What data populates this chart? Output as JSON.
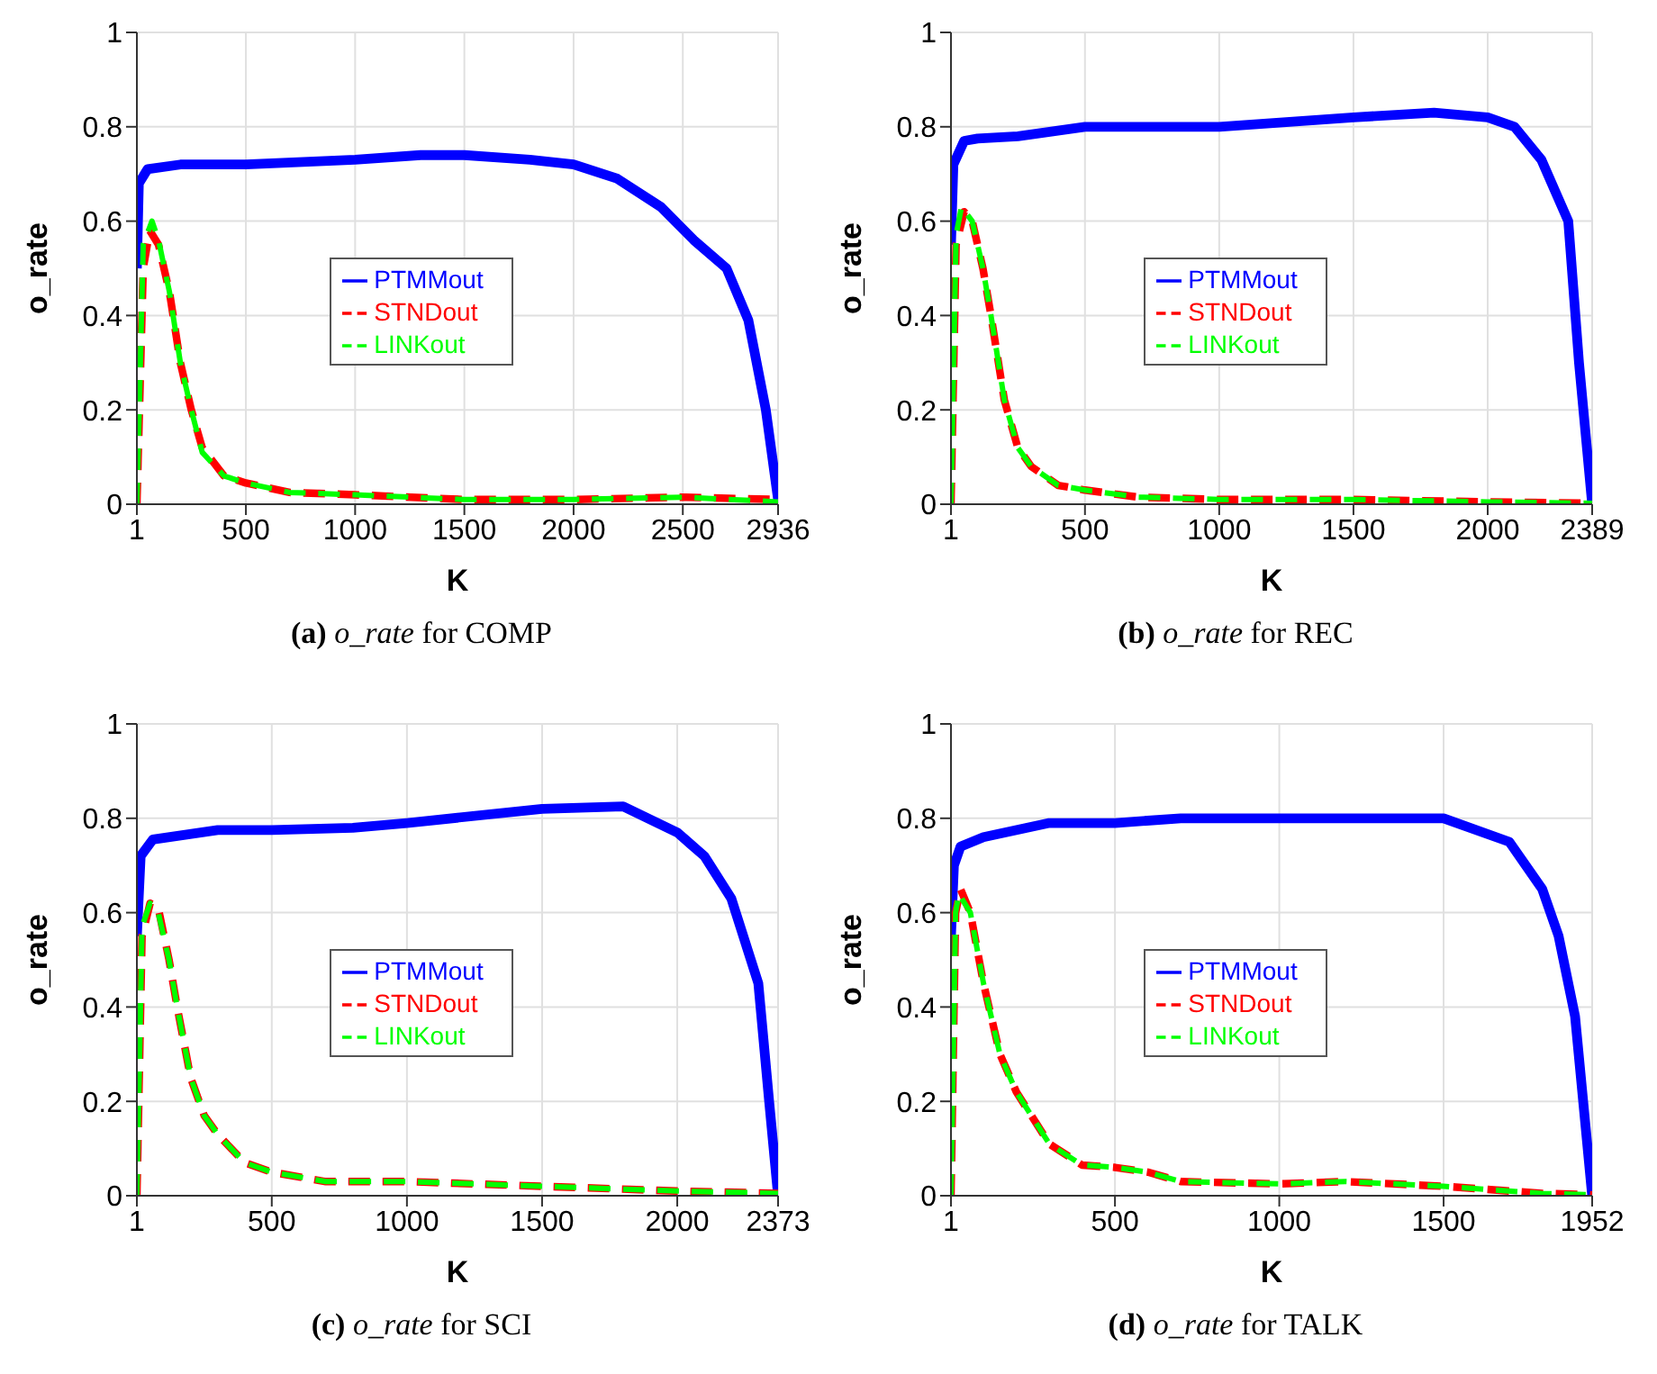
{
  "chart_data": [
    {
      "type": "line",
      "title": "(a) o_rate for COMP",
      "xlabel": "K",
      "ylabel": "o_rate",
      "xlim": [
        1,
        2936
      ],
      "xticks": [
        1,
        500,
        1000,
        1500,
        2000,
        2500,
        2936
      ],
      "ylim": [
        0,
        1
      ],
      "yticks": [
        0,
        0.2,
        0.4,
        0.6,
        0.8,
        1
      ],
      "grid": true,
      "legend": "center",
      "series": [
        {
          "name": "PTMMout",
          "color": "#0000ff",
          "line_style": "solid",
          "x": [
            1,
            10,
            50,
            200,
            500,
            1000,
            1300,
            1500,
            1800,
            2000,
            2200,
            2400,
            2550,
            2700,
            2800,
            2880,
            2936
          ],
          "values": [
            0.5,
            0.68,
            0.71,
            0.72,
            0.72,
            0.73,
            0.74,
            0.74,
            0.73,
            0.72,
            0.69,
            0.63,
            0.56,
            0.5,
            0.39,
            0.2,
            0.01
          ]
        },
        {
          "name": "STNDout",
          "color": "#ff0000",
          "line_style": "dashed",
          "x": [
            1,
            30,
            60,
            100,
            150,
            200,
            250,
            300,
            400,
            500,
            700,
            1000,
            1500,
            2000,
            2500,
            2936
          ],
          "values": [
            0,
            0.5,
            0.58,
            0.55,
            0.45,
            0.3,
            0.2,
            0.12,
            0.06,
            0.045,
            0.025,
            0.02,
            0.01,
            0.01,
            0.015,
            0.01
          ]
        },
        {
          "name": "LINKout",
          "color": "#00ff00",
          "line_style": "dashed",
          "x": [
            1,
            30,
            70,
            100,
            150,
            200,
            250,
            300,
            400,
            500,
            700,
            1000,
            1500,
            2000,
            2500,
            2936
          ],
          "values": [
            0,
            0.55,
            0.6,
            0.56,
            0.45,
            0.3,
            0.2,
            0.11,
            0.06,
            0.045,
            0.025,
            0.02,
            0.01,
            0.01,
            0.015,
            0.005
          ]
        }
      ]
    },
    {
      "type": "line",
      "title": "(b) o_rate for REC",
      "xlabel": "K",
      "ylabel": "o_rate",
      "xlim": [
        1,
        2389
      ],
      "xticks": [
        1,
        500,
        1000,
        1500,
        2000,
        2389
      ],
      "ylim": [
        0,
        1
      ],
      "yticks": [
        0,
        0.2,
        0.4,
        0.6,
        0.8,
        1
      ],
      "grid": true,
      "legend": "center",
      "series": [
        {
          "name": "PTMMout",
          "color": "#0000ff",
          "line_style": "solid",
          "x": [
            1,
            10,
            50,
            100,
            250,
            500,
            1000,
            1500,
            1800,
            2000,
            2100,
            2200,
            2300,
            2340,
            2389
          ],
          "values": [
            0.55,
            0.72,
            0.77,
            0.775,
            0.78,
            0.8,
            0.8,
            0.82,
            0.83,
            0.82,
            0.8,
            0.73,
            0.6,
            0.3,
            0
          ]
        },
        {
          "name": "STNDout",
          "color": "#ff0000",
          "line_style": "dashed",
          "x": [
            1,
            20,
            50,
            80,
            120,
            150,
            200,
            250,
            300,
            400,
            500,
            700,
            1000,
            1500,
            2000,
            2389
          ],
          "values": [
            0,
            0.55,
            0.62,
            0.6,
            0.5,
            0.4,
            0.22,
            0.12,
            0.08,
            0.04,
            0.03,
            0.015,
            0.01,
            0.01,
            0.005,
            0.002
          ]
        },
        {
          "name": "LINKout",
          "color": "#00ff00",
          "line_style": "dashed",
          "x": [
            1,
            20,
            40,
            80,
            120,
            150,
            200,
            250,
            300,
            400,
            500,
            700,
            1000,
            1500,
            2000,
            2389
          ],
          "values": [
            0,
            0.57,
            0.63,
            0.6,
            0.5,
            0.4,
            0.22,
            0.12,
            0.08,
            0.04,
            0.03,
            0.015,
            0.01,
            0.01,
            0.005,
            0.002
          ]
        }
      ]
    },
    {
      "type": "line",
      "title": "(c) o_rate for SCI",
      "xlabel": "K",
      "ylabel": "o_rate",
      "xlim": [
        1,
        2373
      ],
      "xticks": [
        1,
        500,
        1000,
        1500,
        2000,
        2373
      ],
      "ylim": [
        0,
        1
      ],
      "yticks": [
        0,
        0.2,
        0.4,
        0.6,
        0.8,
        1
      ],
      "grid": true,
      "legend": "center",
      "series": [
        {
          "name": "PTMMout",
          "color": "#0000ff",
          "line_style": "solid",
          "x": [
            1,
            15,
            60,
            300,
            500,
            800,
            1000,
            1500,
            1800,
            2000,
            2100,
            2200,
            2300,
            2340,
            2373
          ],
          "values": [
            0.55,
            0.72,
            0.755,
            0.775,
            0.775,
            0.78,
            0.79,
            0.82,
            0.825,
            0.77,
            0.72,
            0.63,
            0.45,
            0.2,
            0
          ]
        },
        {
          "name": "STNDout",
          "color": "#ff0000",
          "line_style": "dashed",
          "x": [
            1,
            20,
            50,
            80,
            120,
            150,
            200,
            250,
            300,
            400,
            500,
            700,
            1000,
            1500,
            2000,
            2373
          ],
          "values": [
            0,
            0.55,
            0.62,
            0.61,
            0.5,
            0.4,
            0.25,
            0.17,
            0.13,
            0.07,
            0.05,
            0.03,
            0.03,
            0.02,
            0.01,
            0.005
          ]
        },
        {
          "name": "LINKout",
          "color": "#00ff00",
          "line_style": "dashed",
          "x": [
            1,
            20,
            50,
            80,
            120,
            150,
            200,
            250,
            300,
            400,
            500,
            700,
            1000,
            1500,
            2000,
            2373
          ],
          "values": [
            0,
            0.57,
            0.62,
            0.6,
            0.5,
            0.4,
            0.25,
            0.17,
            0.13,
            0.07,
            0.05,
            0.03,
            0.03,
            0.02,
            0.01,
            0.005
          ]
        }
      ]
    },
    {
      "type": "line",
      "title": "(d) o_rate for TALK",
      "xlabel": "K",
      "ylabel": "o_rate",
      "xlim": [
        1,
        1952
      ],
      "xticks": [
        1,
        500,
        1000,
        1500,
        1952
      ],
      "ylim": [
        0,
        1
      ],
      "yticks": [
        0,
        0.2,
        0.4,
        0.6,
        0.8,
        1
      ],
      "grid": true,
      "legend": "center",
      "series": [
        {
          "name": "PTMMout",
          "color": "#0000ff",
          "line_style": "solid",
          "x": [
            1,
            10,
            30,
            100,
            300,
            500,
            700,
            1000,
            1400,
            1500,
            1700,
            1800,
            1850,
            1900,
            1952
          ],
          "values": [
            0.55,
            0.7,
            0.74,
            0.76,
            0.79,
            0.79,
            0.8,
            0.8,
            0.8,
            0.8,
            0.75,
            0.65,
            0.55,
            0.38,
            0
          ]
        },
        {
          "name": "STNDout",
          "color": "#ff0000",
          "line_style": "dashed",
          "x": [
            1,
            15,
            30,
            60,
            100,
            150,
            200,
            300,
            400,
            500,
            600,
            700,
            1000,
            1200,
            1500,
            1800,
            1952
          ],
          "values": [
            0,
            0.6,
            0.65,
            0.6,
            0.45,
            0.3,
            0.22,
            0.11,
            0.065,
            0.06,
            0.05,
            0.03,
            0.025,
            0.03,
            0.02,
            0.005,
            0.002
          ]
        },
        {
          "name": "LINKout",
          "color": "#00ff00",
          "line_style": "dashed",
          "x": [
            1,
            15,
            25,
            60,
            100,
            150,
            200,
            300,
            400,
            500,
            600,
            700,
            1000,
            1200,
            1500,
            1800,
            1952
          ],
          "values": [
            0,
            0.6,
            0.64,
            0.6,
            0.45,
            0.3,
            0.22,
            0.11,
            0.065,
            0.06,
            0.05,
            0.03,
            0.025,
            0.03,
            0.02,
            0.005,
            0.002
          ]
        }
      ]
    }
  ]
}
